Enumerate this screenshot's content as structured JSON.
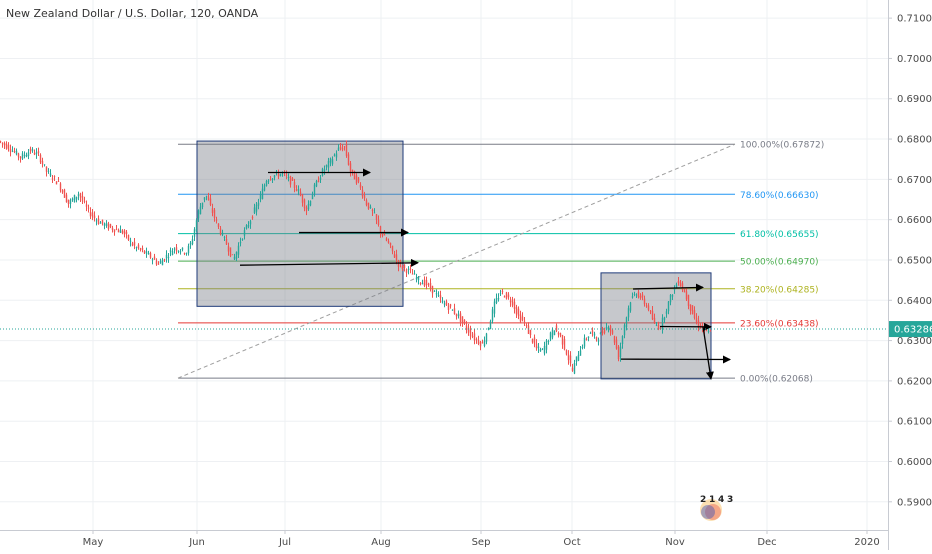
{
  "title": "New Zealand Dollar / U.S. Dollar, 120, OANDA",
  "chart_data": {
    "type": "candlestick",
    "symbol": "NZDUSD",
    "interval": "120",
    "source": "OANDA",
    "ylim": [
      0.5835,
      0.7145
    ],
    "y_ticks": [
      "0.71000",
      "0.70000",
      "0.69000",
      "0.68000",
      "0.67000",
      "0.66000",
      "0.65000",
      "0.64000",
      "0.63000",
      "0.62000",
      "0.61000",
      "0.60000",
      "0.59000"
    ],
    "x_ticks": [
      "May",
      "Jun",
      "Jul",
      "Aug",
      "Sep",
      "Oct",
      "Nov",
      "Dec",
      "2020"
    ],
    "current_price": {
      "label": "0.63286",
      "value": 0.63286,
      "color": "#26a69a"
    },
    "price_path": [
      [
        0,
        0.6795
      ],
      [
        10,
        0.678
      ],
      [
        22,
        0.6755
      ],
      [
        32,
        0.6772
      ],
      [
        40,
        0.676
      ],
      [
        48,
        0.672
      ],
      [
        60,
        0.669
      ],
      [
        70,
        0.664
      ],
      [
        80,
        0.6665
      ],
      [
        90,
        0.662
      ],
      [
        100,
        0.6595
      ],
      [
        112,
        0.658
      ],
      [
        124,
        0.657
      ],
      [
        135,
        0.6535
      ],
      [
        145,
        0.652
      ],
      [
        152,
        0.6508
      ],
      [
        160,
        0.649
      ],
      [
        168,
        0.651
      ],
      [
        176,
        0.653
      ],
      [
        182,
        0.6525
      ],
      [
        188,
        0.652
      ],
      [
        193,
        0.6545
      ],
      [
        200,
        0.662
      ],
      [
        207,
        0.6665
      ],
      [
        213,
        0.6625
      ],
      [
        220,
        0.658
      ],
      [
        228,
        0.654
      ],
      [
        235,
        0.65
      ],
      [
        243,
        0.6555
      ],
      [
        252,
        0.66
      ],
      [
        260,
        0.6645
      ],
      [
        268,
        0.67
      ],
      [
        276,
        0.671
      ],
      [
        284,
        0.6715
      ],
      [
        292,
        0.6695
      ],
      [
        300,
        0.667
      ],
      [
        308,
        0.6625
      ],
      [
        316,
        0.668
      ],
      [
        324,
        0.672
      ],
      [
        332,
        0.6745
      ],
      [
        340,
        0.6775
      ],
      [
        346,
        0.678
      ],
      [
        352,
        0.672
      ],
      [
        360,
        0.669
      ],
      [
        368,
        0.664
      ],
      [
        376,
        0.661
      ],
      [
        382,
        0.657
      ],
      [
        390,
        0.654
      ],
      [
        396,
        0.651
      ],
      [
        400,
        0.649
      ],
      [
        405,
        0.648
      ],
      [
        412,
        0.647
      ],
      [
        420,
        0.645
      ],
      [
        428,
        0.644
      ],
      [
        436,
        0.642
      ],
      [
        444,
        0.6395
      ],
      [
        452,
        0.638
      ],
      [
        460,
        0.636
      ],
      [
        468,
        0.633
      ],
      [
        476,
        0.6305
      ],
      [
        484,
        0.629
      ],
      [
        490,
        0.6335
      ],
      [
        496,
        0.639
      ],
      [
        502,
        0.642
      ],
      [
        508,
        0.641
      ],
      [
        514,
        0.6395
      ],
      [
        520,
        0.636
      ],
      [
        526,
        0.6345
      ],
      [
        532,
        0.631
      ],
      [
        538,
        0.628
      ],
      [
        544,
        0.6275
      ],
      [
        550,
        0.6305
      ],
      [
        556,
        0.633
      ],
      [
        562,
        0.631
      ],
      [
        568,
        0.627
      ],
      [
        574,
        0.6225
      ],
      [
        580,
        0.627
      ],
      [
        586,
        0.63
      ],
      [
        592,
        0.632
      ],
      [
        598,
        0.6305
      ],
      [
        604,
        0.632
      ],
      [
        610,
        0.634
      ],
      [
        616,
        0.63
      ],
      [
        620,
        0.626
      ],
      [
        626,
        0.634
      ],
      [
        632,
        0.64
      ],
      [
        638,
        0.642
      ],
      [
        644,
        0.64
      ],
      [
        650,
        0.638
      ],
      [
        656,
        0.634
      ],
      [
        662,
        0.6335
      ],
      [
        668,
        0.638
      ],
      [
        674,
        0.642
      ],
      [
        680,
        0.645
      ],
      [
        686,
        0.642
      ],
      [
        692,
        0.638
      ],
      [
        698,
        0.6345
      ],
      [
        704,
        0.633
      ],
      [
        710,
        0.632
      ]
    ],
    "fibonacci_levels": [
      {
        "label": "100.00%(0.67872)",
        "value": 0.67872,
        "color": "#787b86"
      },
      {
        "label": "78.60%(0.66630)",
        "value": 0.6663,
        "color": "#2196f3"
      },
      {
        "label": "61.80%(0.65655)",
        "value": 0.65655,
        "color": "#00bfa5"
      },
      {
        "label": "50.00%(0.64970)",
        "value": 0.6497,
        "color": "#4caf50"
      },
      {
        "label": "38.20%(0.64285)",
        "value": 0.64285,
        "color": "#aeb320"
      },
      {
        "label": "23.60%(0.63438)",
        "value": 0.63438,
        "color": "#e53935"
      },
      {
        "label": "0.00%(0.62068)",
        "value": 0.62068,
        "color": "#787b86"
      }
    ],
    "fib_trend": {
      "start_value": 0.62068,
      "end_value": 0.67872
    },
    "rectangles": [
      {
        "top": 0.6795,
        "bottom": 0.6385
      },
      {
        "top": 0.6468,
        "bottom": 0.6205
      }
    ],
    "arrows": [
      {
        "from_value": 0.6717,
        "to_value": 0.6717
      },
      {
        "from_value": 0.6568,
        "to_value": 0.6568
      },
      {
        "from_value": 0.6487,
        "to_value": 0.6493
      },
      {
        "from_value": 0.6428,
        "to_value": 0.6432
      },
      {
        "from_value": 0.6335,
        "to_value": 0.6334
      },
      {
        "from_value": 0.6335,
        "to_value": 0.6205
      },
      {
        "from_value": 0.6254,
        "to_value": 0.6253
      }
    ],
    "event_badges": [
      "2",
      "1",
      "4",
      "3"
    ],
    "grid": true
  }
}
